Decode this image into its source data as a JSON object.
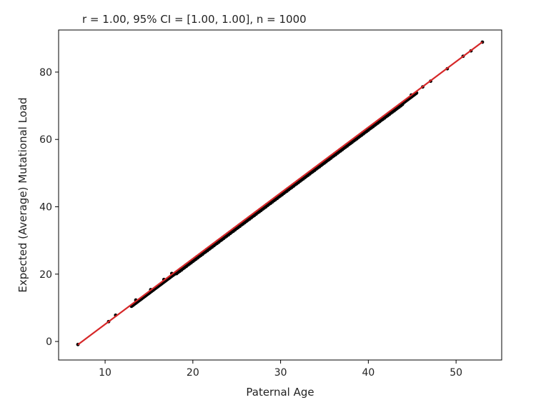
{
  "chart_data": {
    "type": "scatter",
    "title": "r = 1.00, 95% CI = [1.00, 1.00], n = 1000",
    "xlabel": "Paternal Age",
    "ylabel": "Expected (Average) Mutational Load",
    "xlim": [
      4.7,
      55.2
    ],
    "ylim": [
      -5.5,
      92.5
    ],
    "x_ticks": [
      10,
      20,
      30,
      40,
      50
    ],
    "y_ticks": [
      0,
      20,
      40,
      60,
      80
    ],
    "grid": false,
    "legend": "none",
    "points_color": "#000000",
    "fit_line_color": "#d62728",
    "fit_line": {
      "slope": 1.95,
      "intercept": -14.4,
      "x_range": [
        6.9,
        53.0
      ]
    },
    "points_x_range": [
      6.9,
      53.0
    ],
    "highlight_points": [
      {
        "x": 6.9,
        "y": -0.9
      },
      {
        "x": 10.4,
        "y": 5.9
      },
      {
        "x": 11.2,
        "y": 7.8
      },
      {
        "x": 13.5,
        "y": 12.3
      },
      {
        "x": 15.2,
        "y": 15.4
      },
      {
        "x": 16.7,
        "y": 18.4
      },
      {
        "x": 17.6,
        "y": 20.2
      },
      {
        "x": 44.9,
        "y": 73.2
      },
      {
        "x": 46.2,
        "y": 75.6
      },
      {
        "x": 47.1,
        "y": 77.3
      },
      {
        "x": 49.0,
        "y": 81.0
      },
      {
        "x": 50.8,
        "y": 84.7
      },
      {
        "x": 51.7,
        "y": 86.3
      },
      {
        "x": 53.0,
        "y": 88.9
      }
    ],
    "n_points": 1000
  }
}
